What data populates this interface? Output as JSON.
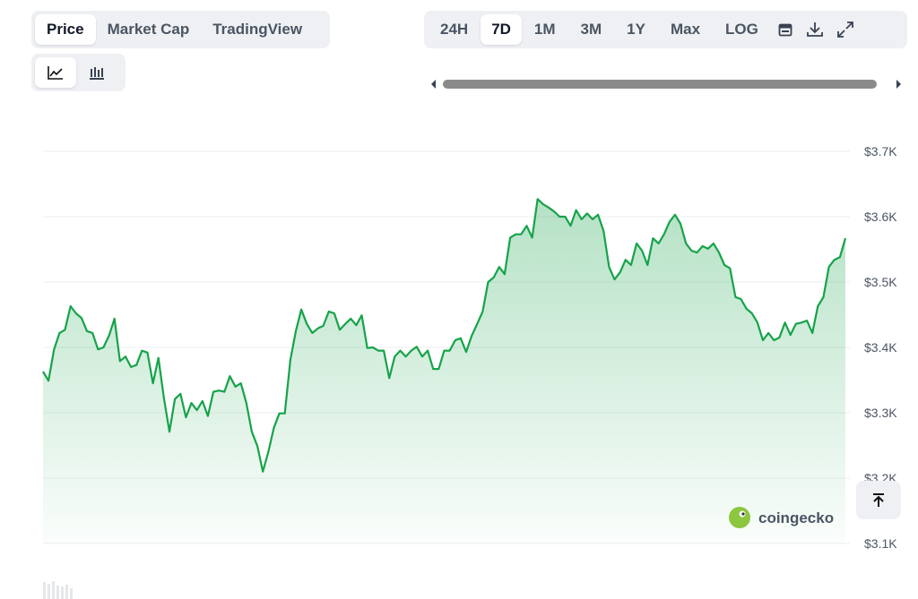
{
  "tabs": [
    "Price",
    "Market Cap",
    "TradingView"
  ],
  "ranges": [
    "24H",
    "7D",
    "1M",
    "3M",
    "1Y",
    "Max",
    "LOG"
  ],
  "watermark": "coingecko",
  "chart_data": {
    "type": "line",
    "color": "#16a34a",
    "grid": true,
    "ylim": [
      3100,
      3700
    ],
    "yticks": [
      {
        "value": 3100,
        "label": "$3.1K"
      },
      {
        "value": 3200,
        "label": "$3.2K"
      },
      {
        "value": 3300,
        "label": "$3.3K"
      },
      {
        "value": 3400,
        "label": "$3.4K"
      },
      {
        "value": 3500,
        "label": "$3.5K"
      },
      {
        "value": 3600,
        "label": "$3.6K"
      },
      {
        "value": 3700,
        "label": "$3.7K"
      }
    ],
    "values": [
      3363,
      3349,
      3397,
      3422,
      3427,
      3463,
      3452,
      3445,
      3425,
      3422,
      3397,
      3400,
      3418,
      3444,
      3379,
      3386,
      3370,
      3373,
      3395,
      3392,
      3345,
      3384,
      3322,
      3271,
      3321,
      3329,
      3293,
      3315,
      3304,
      3318,
      3295,
      3332,
      3334,
      3332,
      3356,
      3340,
      3345,
      3315,
      3271,
      3249,
      3210,
      3240,
      3277,
      3299,
      3299,
      3381,
      3425,
      3458,
      3436,
      3422,
      3429,
      3433,
      3455,
      3452,
      3427,
      3436,
      3444,
      3434,
      3449,
      3399,
      3400,
      3395,
      3395,
      3353,
      3386,
      3395,
      3386,
      3395,
      3401,
      3386,
      3395,
      3367,
      3367,
      3395,
      3395,
      3411,
      3414,
      3393,
      3418,
      3436,
      3455,
      3500,
      3507,
      3523,
      3512,
      3568,
      3573,
      3573,
      3586,
      3568,
      3627,
      3619,
      3614,
      3608,
      3600,
      3600,
      3586,
      3610,
      3596,
      3605,
      3596,
      3603,
      3578,
      3523,
      3504,
      3515,
      3534,
      3526,
      3559,
      3548,
      3526,
      3567,
      3559,
      3573,
      3592,
      3603,
      3589,
      3559,
      3548,
      3545,
      3555,
      3551,
      3559,
      3545,
      3526,
      3521,
      3477,
      3474,
      3459,
      3452,
      3438,
      3411,
      3422,
      3411,
      3415,
      3438,
      3419,
      3436,
      3438,
      3441,
      3422,
      3463,
      3477,
      3523,
      3534,
      3538,
      3567
    ]
  }
}
